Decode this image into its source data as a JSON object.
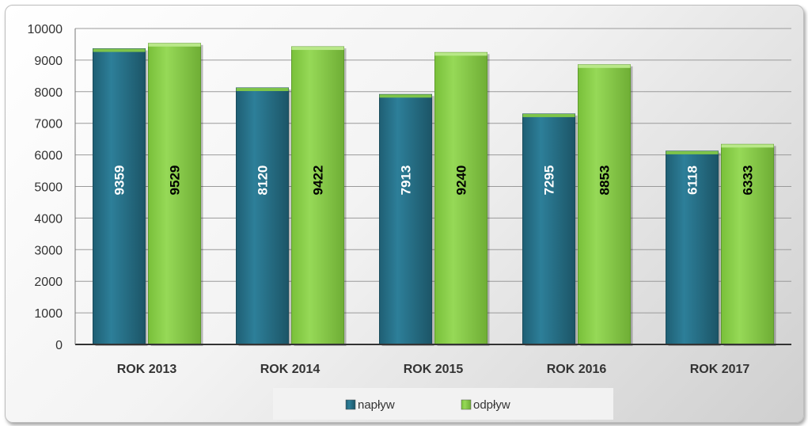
{
  "chart_data": {
    "type": "bar",
    "categories": [
      "ROK 2013",
      "ROK 2014",
      "ROK 2015",
      "ROK 2016",
      "ROK 2017"
    ],
    "series": [
      {
        "name": "napływ",
        "values": [
          9359,
          8120,
          7913,
          7295,
          6118
        ],
        "color": "#2c7a94",
        "label_color": "#ffffff"
      },
      {
        "name": "odpływ",
        "values": [
          9529,
          9422,
          9240,
          8853,
          6333
        ],
        "color": "#8fd14f",
        "label_color": "#000000"
      }
    ],
    "ylim": [
      0,
      10000
    ],
    "yticks": [
      0,
      1000,
      2000,
      3000,
      4000,
      5000,
      6000,
      7000,
      8000,
      9000,
      10000
    ],
    "title": "",
    "xlabel": "",
    "ylabel": "",
    "grid": true,
    "legend": "bottom-center",
    "data_labels": "vertical-inside"
  }
}
